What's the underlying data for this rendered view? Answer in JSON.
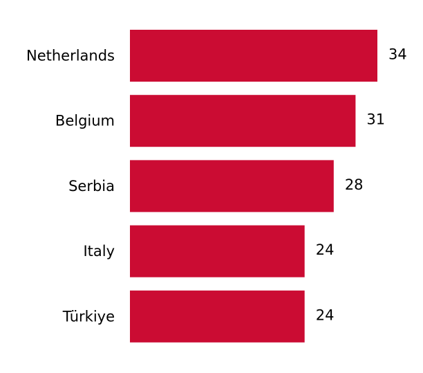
{
  "chart_data": {
    "type": "bar",
    "orientation": "horizontal",
    "categories": [
      "Netherlands",
      "Belgium",
      "Serbia",
      "Italy",
      "Türkiye"
    ],
    "values": [
      34,
      31,
      28,
      24,
      24
    ],
    "color": "#cb0c33"
  }
}
